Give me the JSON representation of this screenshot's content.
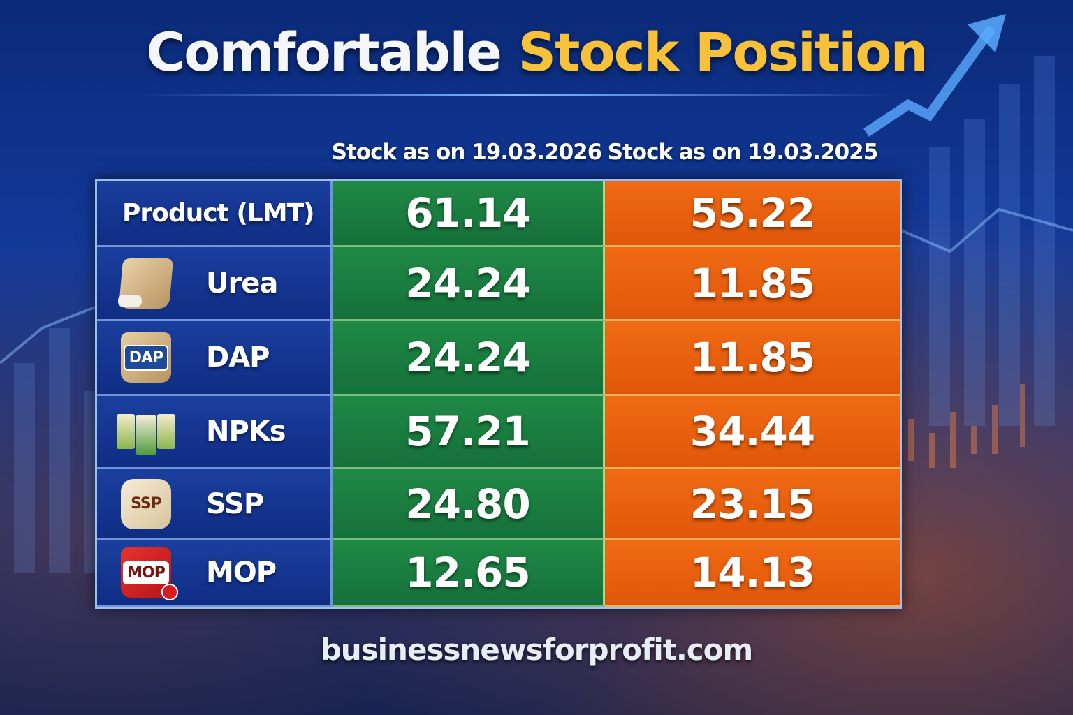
{
  "title": {
    "part1": "Comfortable",
    "part2": "Stock Position"
  },
  "colors": {
    "accent_title": "#f7c23a",
    "current_column": "#1f8a45",
    "previous_column": "#f06a14",
    "product_column": "#1a3f9e"
  },
  "chart_data": {
    "type": "table",
    "columns": [
      "Stock as on 19.03.2026",
      "Stock as on 19.03.2025"
    ],
    "header_row": {
      "label": "Product (LMT)",
      "values": [
        "61.14",
        "55.22"
      ]
    },
    "rows": [
      {
        "product": "Urea",
        "icon": "sack-icon",
        "bag_label": "",
        "values": [
          "24.24",
          "11.85"
        ]
      },
      {
        "product": "DAP",
        "icon": "dap-bag-icon",
        "bag_label": "DAP",
        "values": [
          "24.24",
          "11.85"
        ]
      },
      {
        "product": "NPKs",
        "icon": "npk-bags-icon",
        "bag_label": "",
        "values": [
          "57.21",
          "34.44"
        ]
      },
      {
        "product": "SSP",
        "icon": "ssp-bag-icon",
        "bag_label": "SSP",
        "values": [
          "24.80",
          "23.15"
        ]
      },
      {
        "product": "MOP",
        "icon": "mop-bag-icon",
        "bag_label": "MOP",
        "values": [
          "12.65",
          "14.13"
        ]
      }
    ]
  },
  "footer": {
    "website": "businessnewsforprofit.com"
  }
}
